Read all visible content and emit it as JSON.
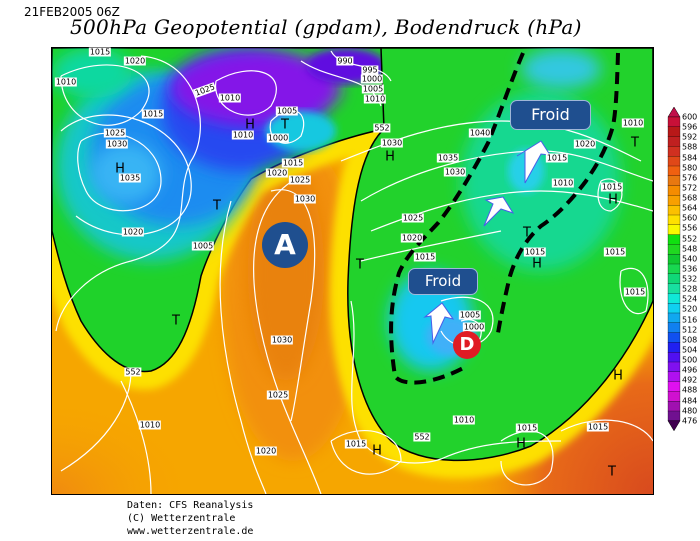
{
  "header": {
    "timestamp": "21FEB2005 06Z",
    "title": "500hPa Geopotential (gpdam), Bodendruck (hPa)"
  },
  "map": {
    "isobar_labels": [
      "1015",
      "1020",
      "1010",
      "1025",
      "1010",
      "1015",
      "1025",
      "1030",
      "1035",
      "1020",
      "1005",
      "1010",
      "1005",
      "1000",
      "1015",
      "1020",
      "1025",
      "1030",
      "990",
      "995",
      "1000",
      "1005",
      "1010",
      "1030",
      "1040",
      "1035",
      "1030",
      "1025",
      "1020",
      "1015",
      "1010",
      "1020",
      "1015",
      "1010",
      "1015",
      "1015",
      "1015",
      "1015",
      "1005",
      "1000",
      "1030",
      "1025",
      "1010",
      "1020",
      "1015",
      "1010",
      "1015",
      "1015"
    ],
    "geopotential_labels": [
      "552",
      "552",
      "552"
    ],
    "pressure_centers": [
      "H",
      "T",
      "H",
      "T",
      "H",
      "T",
      "T",
      "H",
      "T",
      "H",
      "T",
      "H",
      "H",
      "H",
      "T"
    ],
    "annotations": {
      "high_marker": "A",
      "low_marker": "D",
      "cold_labels": [
        "Froid",
        "Froid"
      ],
      "high_color": "#1f4f8f",
      "low_color": "#e01b24",
      "cold_box_color": "#1f4f8f"
    }
  },
  "colorbar": {
    "ticks": [
      "600",
      "596",
      "592",
      "588",
      "584",
      "580",
      "576",
      "572",
      "568",
      "564",
      "560",
      "556",
      "552",
      "548",
      "540",
      "536",
      "532",
      "528",
      "524",
      "520",
      "516",
      "512",
      "508",
      "504",
      "500",
      "496",
      "492",
      "488",
      "484",
      "480",
      "476"
    ],
    "colors": [
      "#c0104a",
      "#c81038",
      "#b81818",
      "#c02020",
      "#d03020",
      "#e04818",
      "#f06010",
      "#e87810",
      "#f58c00",
      "#f8a000",
      "#fcc000",
      "#ffe000",
      "#f8f800",
      "#10e010",
      "#20d820",
      "#10c830",
      "#18d850",
      "#10d878",
      "#18e0a0",
      "#10e8d8",
      "#10d0f0",
      "#10a8f0",
      "#1080f0",
      "#1050f0",
      "#2020f0",
      "#5010f0",
      "#8010f0",
      "#b010f0",
      "#e010f0",
      "#d010d0",
      "#a010b0",
      "#701090",
      "#400050"
    ]
  },
  "footer": {
    "lines": [
      "Daten: CFS Reanalysis",
      "(C) Wetterzentrale",
      "www.wetterzentrale.de"
    ]
  }
}
